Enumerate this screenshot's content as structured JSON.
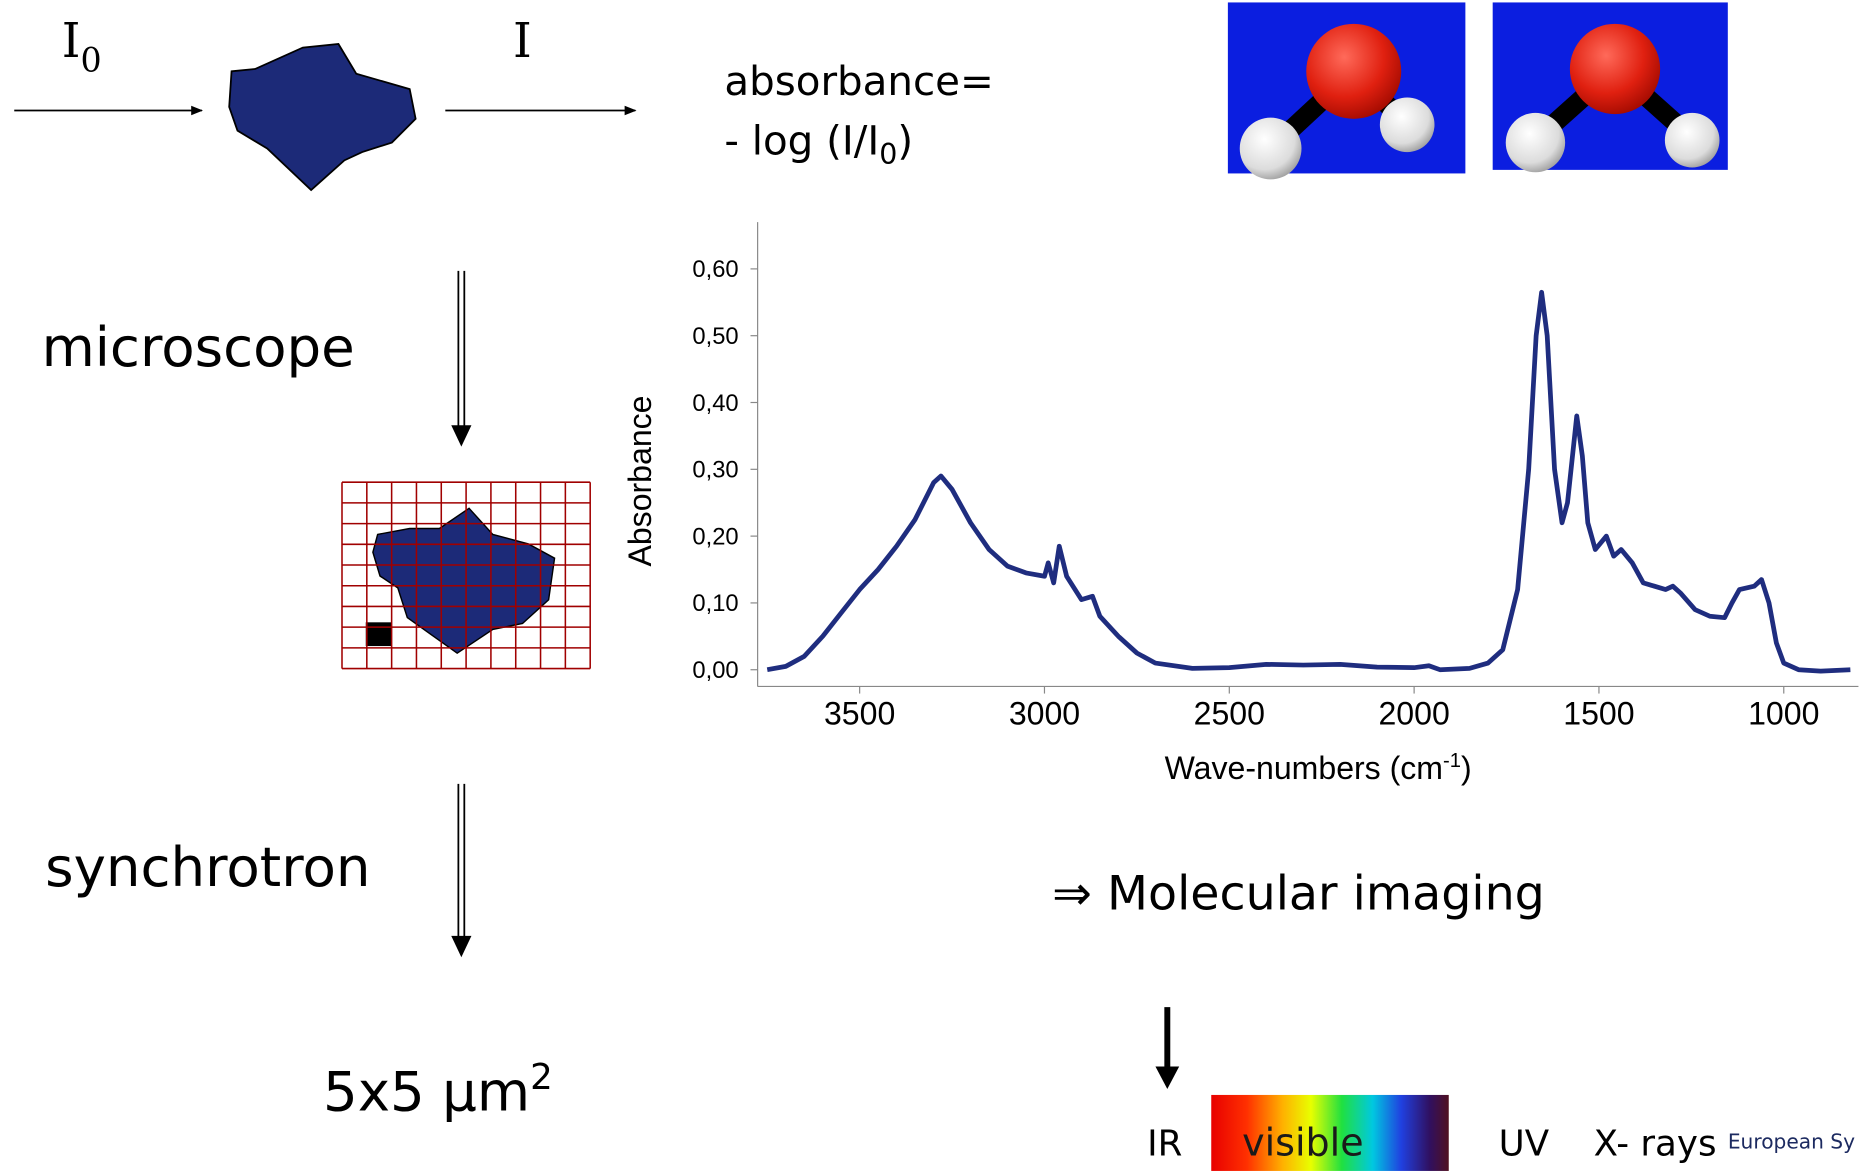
{
  "diagram": {
    "incident": "I",
    "incident_sub": "0",
    "transmitted": "I",
    "formula_line1": "absorbance=",
    "formula_line2": "- log (I/I",
    "formula_sub": "0",
    "formula_end": ")",
    "step1": "microscope",
    "step2": "synchrotron",
    "resolution": "5x5 µm",
    "resolution_sup": "2",
    "result": "⇒ Molecular imaging",
    "spectrum": {
      "ir": "IR",
      "visible": "visible",
      "uv": "UV",
      "xrays": "X- rays"
    },
    "logo": "European Sy"
  },
  "chart_data": {
    "type": "line",
    "y_label": "Absorbance",
    "x_label": "Wave-numbers (cm",
    "x_label_sup": "-1",
    "x_label_end": ")",
    "color": "#1f2d7f",
    "xlim": [
      3776,
      798
    ],
    "ylim": [
      -0.025,
      0.67
    ],
    "xticks": [
      3500,
      3000,
      2500,
      2000,
      1500,
      1000
    ],
    "yticks": [
      {
        "value": 0,
        "label": "0,00"
      },
      {
        "value": 0.1,
        "label": "0,10"
      },
      {
        "value": 0.2,
        "label": "0,20"
      },
      {
        "value": 0.3,
        "label": "0,30"
      },
      {
        "value": 0.4,
        "label": "0,40"
      },
      {
        "value": 0.5,
        "label": "0,50"
      },
      {
        "value": 0.6,
        "label": "0,60"
      }
    ],
    "x": [
      3750,
      3700,
      3650,
      3600,
      3550,
      3500,
      3450,
      3400,
      3350,
      3300,
      3280,
      3250,
      3200,
      3150,
      3100,
      3050,
      3000,
      2990,
      2975,
      2960,
      2940,
      2900,
      2870,
      2850,
      2800,
      2750,
      2700,
      2600,
      2500,
      2400,
      2300,
      2200,
      2100,
      2000,
      1960,
      1930,
      1850,
      1800,
      1760,
      1720,
      1690,
      1670,
      1655,
      1640,
      1620,
      1600,
      1585,
      1560,
      1545,
      1530,
      1510,
      1480,
      1460,
      1440,
      1410,
      1380,
      1350,
      1320,
      1300,
      1280,
      1240,
      1200,
      1160,
      1140,
      1120,
      1080,
      1060,
      1040,
      1020,
      1000,
      960,
      900,
      820
    ],
    "values": [
      0,
      0.005,
      0.02,
      0.05,
      0.085,
      0.12,
      0.15,
      0.185,
      0.225,
      0.28,
      0.29,
      0.27,
      0.22,
      0.18,
      0.155,
      0.145,
      0.14,
      0.16,
      0.13,
      0.185,
      0.14,
      0.105,
      0.11,
      0.08,
      0.05,
      0.025,
      0.01,
      0.002,
      0.003,
      0.008,
      0.007,
      0.008,
      0.004,
      0.003,
      0.006,
      0,
      0.002,
      0.01,
      0.03,
      0.12,
      0.3,
      0.5,
      0.565,
      0.5,
      0.3,
      0.22,
      0.25,
      0.38,
      0.32,
      0.22,
      0.18,
      0.2,
      0.17,
      0.18,
      0.16,
      0.13,
      0.125,
      0.12,
      0.125,
      0.115,
      0.09,
      0.08,
      0.078,
      0.1,
      0.12,
      0.125,
      0.135,
      0.1,
      0.04,
      0.01,
      0,
      -0.002,
      0
    ]
  }
}
